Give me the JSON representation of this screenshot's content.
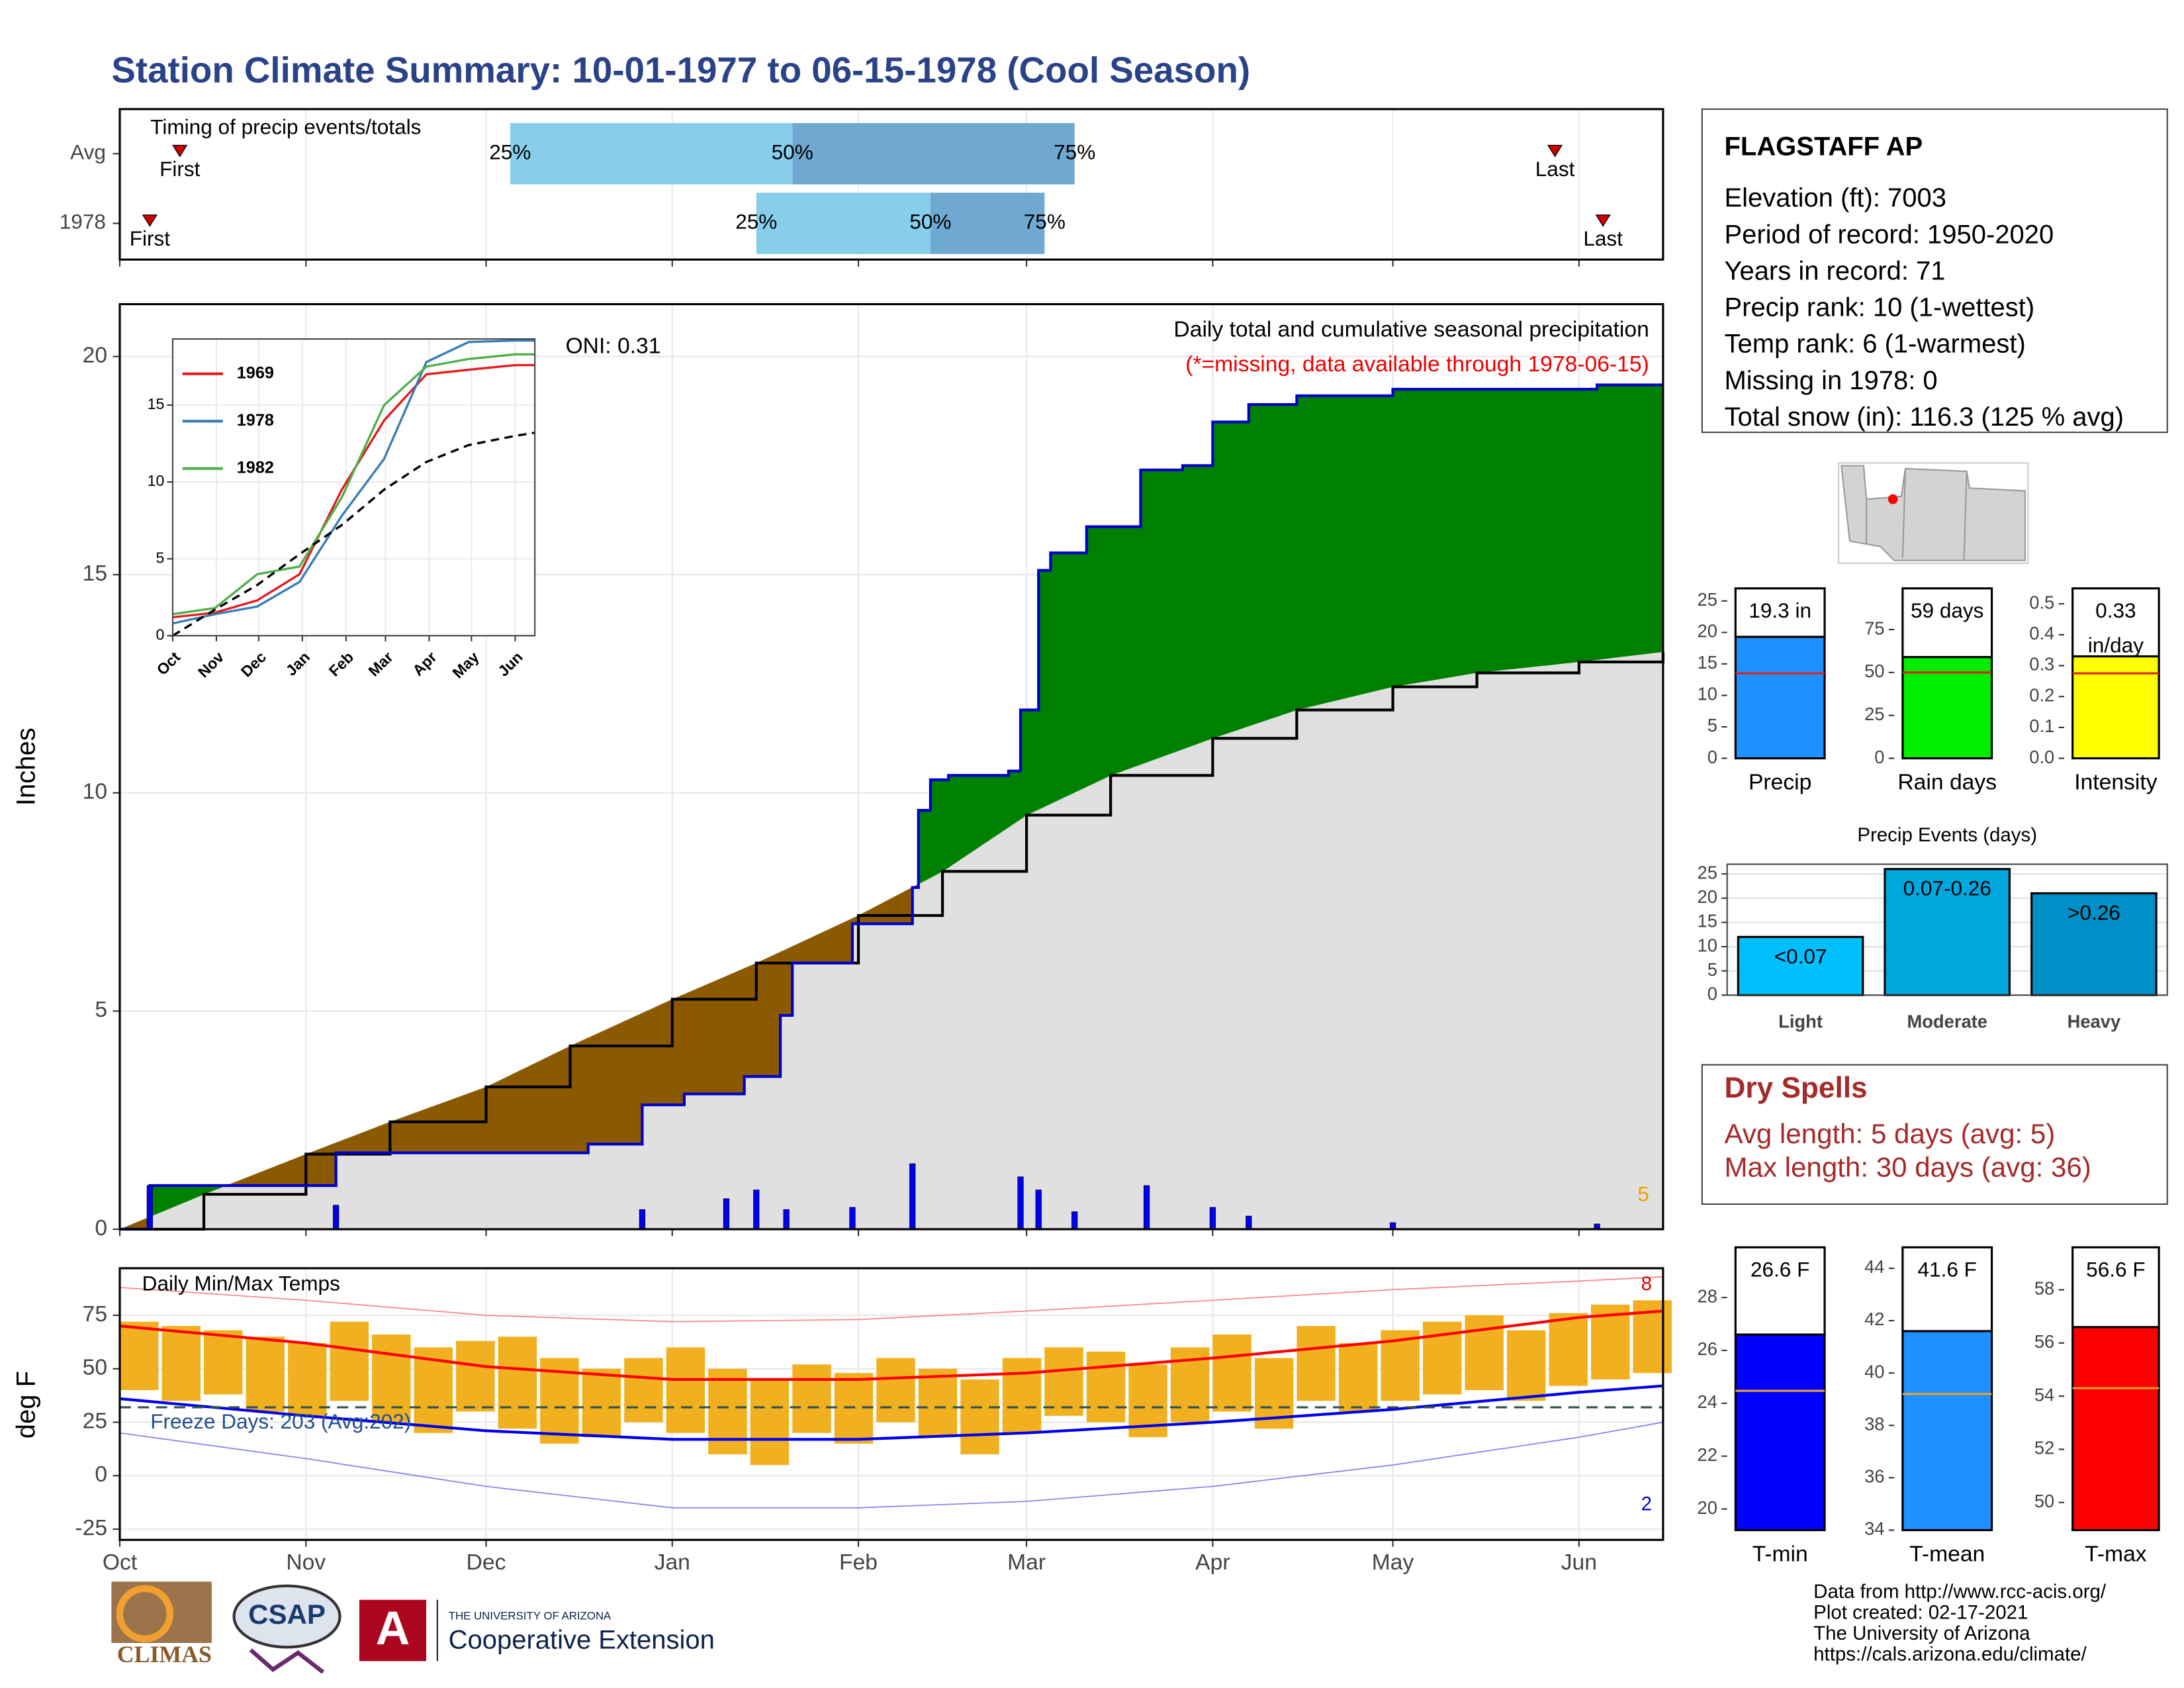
{
  "header": {
    "title": "Station Climate Summary: 10-01-1977 to 06-15-1978 (Cool Season)"
  },
  "station": {
    "name": "FLAGSTAFF AP",
    "lines": [
      "Elevation (ft): 7003",
      "Period of record: 1950-2020",
      "Years in record: 71",
      "Precip rank: 10 (1-wettest)",
      "Temp rank: 6 (1-warmest)",
      "Missing in 1978: 0",
      "Total snow (in): 116.3 (125 % avg)"
    ]
  },
  "dry_spells": {
    "title": "Dry Spells",
    "lines": [
      "Avg length: 5 days (avg: 5)",
      "Max length: 30 days (avg: 36)"
    ]
  },
  "footer": {
    "credits": [
      "Data from http://www.rcc-acis.org/",
      "Plot created: 02-17-2021",
      "The University of Arizona",
      "https://cals.arizona.edu/climate/"
    ],
    "logos": [
      "CLIMAS",
      "CSAP",
      "A",
      "THE UNIVERSITY OF ARIZONA",
      "Cooperative Extension"
    ]
  },
  "chart_data": [
    {
      "type": "timing",
      "title": "Timing of precip events/totals",
      "xlim": [
        0,
        257
      ],
      "xticks": [
        0,
        31,
        61,
        92,
        123,
        151,
        182,
        212,
        243
      ],
      "percentile_labels": [
        "25%",
        "50%",
        "75%"
      ],
      "first_label": "First",
      "last_label": "Last",
      "colors": [
        "#87ceeb",
        "#6fa8d0",
        "#cc0000"
      ],
      "rows": [
        {
          "name": "Avg",
          "first": 10,
          "p25": 65,
          "p50": 112,
          "p75": 159,
          "last": 239
        },
        {
          "name": "1978",
          "first": 5,
          "p25": 106,
          "p50": 135,
          "p75": 154,
          "last": 247
        }
      ]
    },
    {
      "type": "cumulative_precip",
      "title": "Daily total and cumulative seasonal precipitation",
      "subtitle": "(*=missing, data available through 1978-06-15)",
      "annotations": [
        "ONI: 0.31",
        "5"
      ],
      "ylabel": "Inches",
      "xlim": [
        0,
        257
      ],
      "ylim": [
        0,
        21.2
      ],
      "yticks": [
        0,
        5,
        10,
        15,
        20
      ],
      "xticks": [
        0,
        31,
        61,
        92,
        123,
        151,
        182,
        212,
        243
      ],
      "grid": true,
      "above_color": "#008000",
      "below_color": "#8b5a00",
      "base_color": "#e0e0e0",
      "average": {
        "color": "#000000",
        "x": [
          0,
          14,
          31,
          45,
          61,
          75,
          92,
          106,
          123,
          137,
          151,
          165,
          182,
          196,
          212,
          226,
          243,
          257
        ],
        "values": [
          0,
          0.8,
          1.72,
          2.46,
          3.26,
          4.2,
          5.27,
          6.1,
          7.19,
          8.2,
          9.49,
          10.4,
          11.25,
          11.9,
          12.43,
          12.75,
          13.0,
          13.23
        ]
      },
      "season": {
        "color": "#0000cc",
        "x": [
          0,
          5,
          36,
          78,
          87,
          94,
          104,
          110,
          112,
          122,
          132,
          133,
          135,
          138,
          148,
          150,
          153,
          155,
          161,
          170,
          177,
          182,
          188,
          196,
          212,
          246,
          257
        ],
        "values": [
          0,
          1.0,
          1.75,
          1.95,
          2.85,
          3.1,
          3.5,
          4.9,
          6.1,
          7.0,
          7.83,
          9.6,
          10.3,
          10.4,
          10.5,
          11.9,
          15.1,
          15.5,
          16.1,
          17.4,
          17.5,
          18.5,
          18.9,
          19.1,
          19.25,
          19.35,
          19.35
        ]
      },
      "daily": {
        "color": "#0000ee",
        "x": [
          5,
          36,
          87,
          101,
          106,
          111,
          122,
          132,
          150,
          153,
          159,
          171,
          182,
          188,
          212,
          246
        ],
        "values": [
          1.0,
          0.55,
          0.45,
          0.7,
          0.9,
          0.45,
          0.5,
          1.5,
          1.2,
          0.9,
          0.4,
          1.0,
          0.5,
          0.3,
          0.15,
          0.12
        ]
      }
    },
    {
      "type": "line",
      "xlim": [
        0,
        257
      ],
      "ylim": [
        0,
        19.3
      ],
      "yticks": [
        0,
        5,
        10,
        15
      ],
      "xticks": [
        {
          "value": 0,
          "label": "Oct"
        },
        {
          "value": 31,
          "label": "Nov"
        },
        {
          "value": 61,
          "label": "Dec"
        },
        {
          "value": 92,
          "label": "Jan"
        },
        {
          "value": 123,
          "label": "Feb"
        },
        {
          "value": 151,
          "label": "Mar"
        },
        {
          "value": 182,
          "label": "Apr"
        },
        {
          "value": 212,
          "label": "May"
        },
        {
          "value": 243,
          "label": "Jun"
        }
      ],
      "x": [
        0,
        30,
        60,
        90,
        120,
        150,
        180,
        210,
        243,
        257
      ],
      "series": [
        {
          "name": "1969",
          "color": "#e41a1c",
          "values": [
            1.2,
            1.5,
            2.3,
            4,
            9.5,
            14,
            17,
            17.3,
            17.6,
            17.6
          ]
        },
        {
          "name": "1978",
          "color": "#377eb8",
          "values": [
            0.8,
            1.4,
            1.9,
            3.5,
            7.8,
            11.5,
            17.8,
            19.1,
            19.2,
            19.2
          ]
        },
        {
          "name": "1982",
          "color": "#4daf4a",
          "values": [
            1.4,
            1.8,
            4,
            4.5,
            9,
            15,
            17.5,
            18,
            18.3,
            18.3
          ]
        },
        {
          "color": "#000000",
          "dashed": true,
          "values": [
            0,
            1.7,
            3.3,
            5.3,
            7.2,
            9.5,
            11.3,
            12.4,
            13.0,
            13.2
          ]
        }
      ]
    },
    {
      "type": "stat_bar",
      "xlabel": "Precip",
      "values": [
        19.3
      ],
      "value_labels": [
        "19.3 in"
      ],
      "average": 13.5,
      "color": "#1e90ff",
      "avg_color": "#dd2222",
      "ylim": [
        0,
        27
      ],
      "yticks": [
        0,
        5,
        10,
        15,
        20,
        25
      ]
    },
    {
      "type": "stat_bar",
      "xlabel": "Rain days",
      "values": [
        59
      ],
      "value_labels": [
        "59 days"
      ],
      "average": 50,
      "color": "#00ee00",
      "avg_color": "#dd2222",
      "ylim": [
        0,
        99
      ],
      "yticks": [
        0,
        25,
        50,
        75
      ]
    },
    {
      "type": "stat_bar",
      "xlabel": "Intensity",
      "values": [
        0.33
      ],
      "value_labels": [
        "0.33"
      ],
      "unit": "in/day",
      "average": 0.275,
      "color": "#ffff00",
      "avg_color": "#dd2222",
      "ylim": [
        0,
        0.55
      ],
      "yticks": [
        {
          "value": 0,
          "label": "0.0"
        },
        0.1,
        0.2,
        0.3,
        0.4,
        0.5
      ]
    },
    {
      "type": "bar",
      "title": "Precip Events (days)",
      "categories": [
        "Light",
        "Moderate",
        "Heavy"
      ],
      "values": [
        12,
        26,
        21
      ],
      "bar_labels": [
        "<0.07",
        "0.07-0.26",
        ">0.26"
      ],
      "colors": [
        "#00bfff",
        "#00a8e0",
        "#0090c8"
      ],
      "ylim": [
        0,
        27
      ],
      "yticks": [
        0,
        5,
        10,
        15,
        20,
        25
      ],
      "grid": true
    },
    {
      "type": "temperature",
      "title": "Daily Min/Max Temps",
      "annotations": [
        "Freeze Days: 203 (Avg:202)",
        "8",
        "2"
      ],
      "ylabel": "deg F",
      "xlim": [
        0,
        257
      ],
      "ylim": [
        -30,
        97
      ],
      "yticks": [
        -25,
        0,
        25,
        50,
        75
      ],
      "freeze_line": 32,
      "grid": true,
      "xticks": [
        {
          "value": 0,
          "label": "Oct"
        },
        {
          "value": 31,
          "label": "Nov"
        },
        {
          "value": 61,
          "label": "Dec"
        },
        {
          "value": 92,
          "label": "Jan"
        },
        {
          "value": 123,
          "label": "Feb"
        },
        {
          "value": 151,
          "label": "Mar"
        },
        {
          "value": 182,
          "label": "Apr"
        },
        {
          "value": 212,
          "label": "May"
        },
        {
          "value": 243,
          "label": "Jun"
        }
      ],
      "daily": {
        "color": "#f0b020",
        "x": [
          0,
          7,
          14,
          21,
          28,
          35,
          42,
          49,
          56,
          63,
          70,
          77,
          84,
          91,
          98,
          105,
          112,
          119,
          126,
          133,
          140,
          147,
          154,
          161,
          168,
          175,
          182,
          189,
          196,
          203,
          210,
          217,
          224,
          231,
          238,
          245,
          252
        ],
        "max": [
          72,
          70,
          68,
          65,
          62,
          72,
          66,
          60,
          63,
          65,
          55,
          50,
          55,
          60,
          50,
          45,
          52,
          48,
          55,
          50,
          45,
          55,
          60,
          58,
          52,
          60,
          66,
          55,
          70,
          62,
          68,
          72,
          75,
          68,
          76,
          80,
          82
        ],
        "min": [
          40,
          35,
          38,
          30,
          28,
          35,
          25,
          20,
          30,
          22,
          15,
          18,
          25,
          20,
          10,
          5,
          20,
          15,
          25,
          18,
          10,
          20,
          28,
          25,
          18,
          25,
          30,
          22,
          35,
          30,
          35,
          38,
          40,
          35,
          42,
          45,
          48
        ]
      },
      "line_x": [
        0,
        31,
        61,
        92,
        123,
        151,
        182,
        212,
        243,
        257
      ],
      "lines": [
        {
          "color": "#ff0000",
          "width": 2,
          "values": [
            70,
            62,
            51,
            45,
            45,
            48,
            55,
            63,
            74,
            77
          ]
        },
        {
          "color": "#0000ee",
          "width": 2,
          "values": [
            36,
            28,
            21,
            17,
            17,
            20,
            25,
            31,
            39,
            42
          ]
        },
        {
          "color": "#ff8080",
          "width": 0.8,
          "values": [
            88,
            82,
            75,
            72,
            73,
            77,
            82,
            87,
            91,
            93
          ]
        },
        {
          "color": "#8080ee",
          "width": 0.8,
          "values": [
            20,
            8,
            -5,
            -15,
            -15,
            -12,
            -5,
            5,
            18,
            25
          ]
        }
      ]
    },
    {
      "type": "stat_bar",
      "xlabel": "T-min",
      "values": [
        26.6
      ],
      "value_labels": [
        "26.6 F"
      ],
      "average": 24.47,
      "color": "#0000ff",
      "avg_color": "#f0a030",
      "ylim": [
        19.2,
        29.9
      ],
      "yticks": [
        20,
        22,
        24,
        26,
        28
      ]
    },
    {
      "type": "stat_bar",
      "xlabel": "T-mean",
      "values": [
        41.6
      ],
      "value_labels": [
        "41.6 F"
      ],
      "average": 39.2,
      "color": "#1e90ff",
      "avg_color": "#f0a030",
      "ylim": [
        34,
        44.8
      ],
      "yticks": [
        34,
        36,
        38,
        40,
        42,
        44
      ]
    },
    {
      "type": "stat_bar",
      "xlabel": "T-max",
      "values": [
        56.6
      ],
      "value_labels": [
        "56.6 F"
      ],
      "average": 54.3,
      "color": "#ff0000",
      "avg_color": "#f0a030",
      "ylim": [
        48.96,
        59.6
      ],
      "yticks": [
        50,
        52,
        54,
        56,
        58
      ]
    }
  ]
}
